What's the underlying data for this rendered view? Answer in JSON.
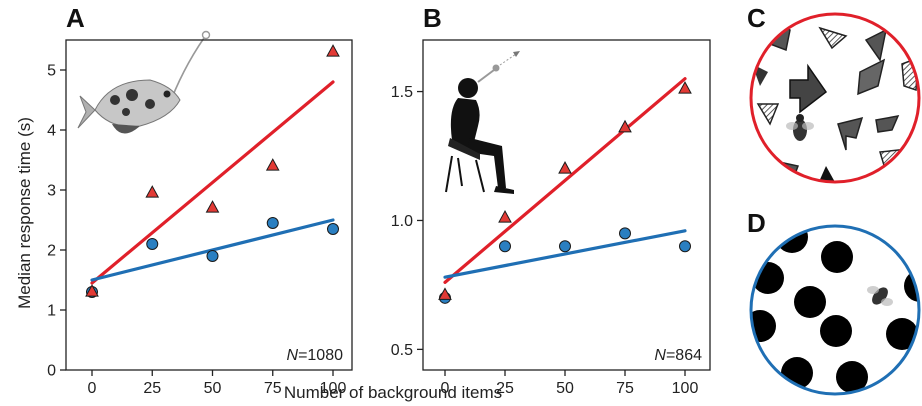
{
  "figure": {
    "xlabel": "Number of background items",
    "ylabel": "Median response time (s)"
  },
  "panels": {
    "A": {
      "label": "A",
      "n_label": "N",
      "n_value": "=1080"
    },
    "B": {
      "label": "B",
      "n_label": "N",
      "n_value": "=864"
    },
    "C": {
      "label": "C"
    },
    "D": {
      "label": "D"
    }
  },
  "colors": {
    "red": "#e0202a",
    "blue": "#1f6fb4",
    "triangle_fill": "#e23a35",
    "circle_fill": "#2a7fc1",
    "outline": "#1a1a1a"
  },
  "icons": {
    "A": "archerfish-icon",
    "B": "human-with-blowpipe-icon",
    "C": "fly-icon",
    "D": "fly-icon"
  },
  "chart_data": [
    {
      "panel": "A",
      "type": "scatter",
      "x": [
        0,
        25,
        50,
        75,
        100
      ],
      "xticks": [
        0,
        25,
        50,
        75,
        100
      ],
      "ylim": [
        0,
        5.5
      ],
      "yticks": [
        0,
        1,
        2,
        3,
        4,
        5
      ],
      "series": [
        {
          "marker": "triangle",
          "color": "#e23a35",
          "values": [
            1.3,
            2.95,
            2.7,
            3.4,
            5.3
          ],
          "fit": [
            1.45,
            4.8
          ]
        },
        {
          "marker": "circle",
          "color": "#2a7fc1",
          "values": [
            1.3,
            2.1,
            1.9,
            2.45,
            2.35
          ],
          "fit": [
            1.5,
            2.5
          ]
        }
      ],
      "annotation": "N=1080"
    },
    {
      "panel": "B",
      "type": "scatter",
      "x": [
        0,
        25,
        50,
        75,
        100
      ],
      "xticks": [
        0,
        25,
        50,
        75,
        100
      ],
      "ylim": [
        0.42,
        1.7
      ],
      "yticks": [
        0.5,
        1.0,
        1.5
      ],
      "ytick_labels": [
        "0.5",
        "1.0",
        "1.5"
      ],
      "series": [
        {
          "marker": "triangle",
          "color": "#e23a35",
          "values": [
            0.71,
            1.01,
            1.2,
            1.36,
            1.51
          ],
          "fit": [
            0.76,
            1.55
          ]
        },
        {
          "marker": "circle",
          "color": "#2a7fc1",
          "values": [
            0.7,
            0.9,
            0.9,
            0.95,
            0.9
          ],
          "fit": [
            0.78,
            0.96
          ]
        }
      ],
      "annotation": "N=864"
    }
  ]
}
